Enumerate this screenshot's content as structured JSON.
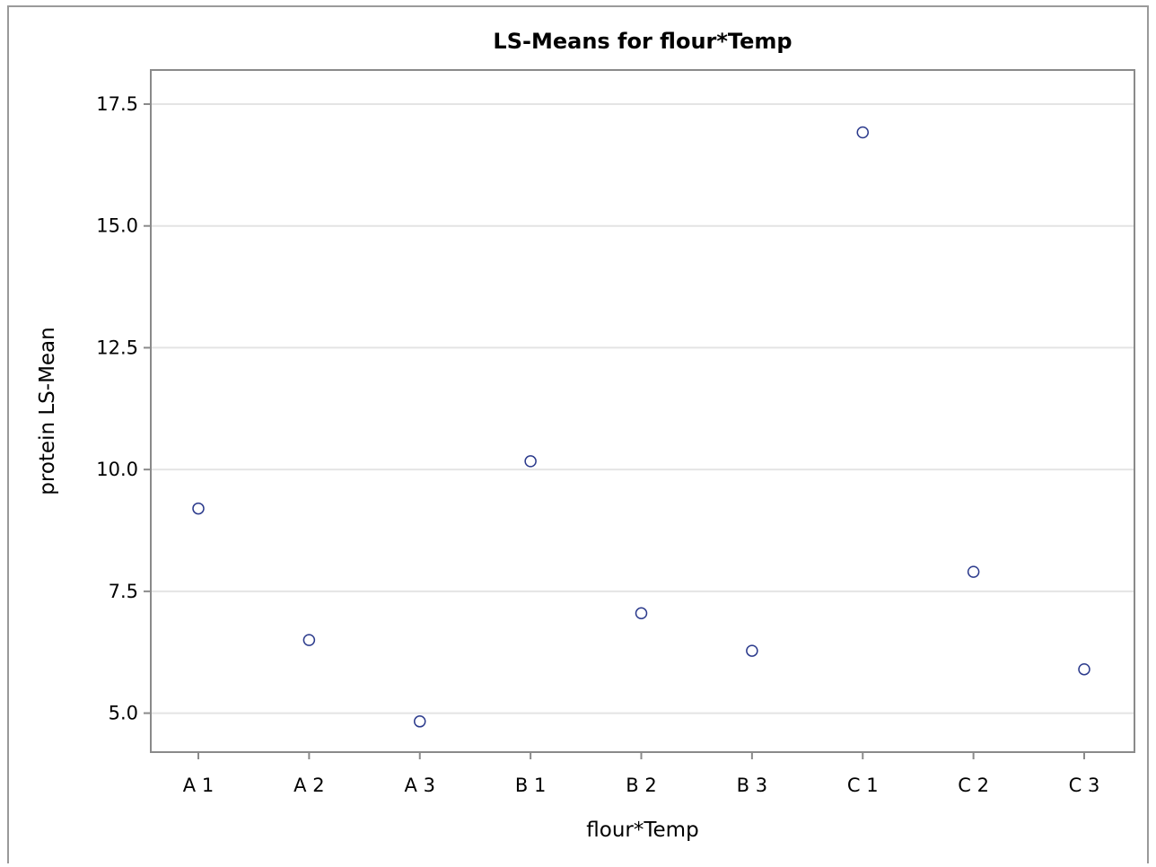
{
  "chart_data": {
    "type": "scatter",
    "title": "LS-Means for flour*Temp",
    "xlabel": "flour*Temp",
    "ylabel": "protein LS-Mean",
    "categories": [
      "A 1",
      "A 2",
      "A 3",
      "B 1",
      "B 2",
      "B 3",
      "C 1",
      "C 2",
      "C 3"
    ],
    "values": [
      9.2,
      6.5,
      4.83,
      10.17,
      7.05,
      6.28,
      16.92,
      7.9,
      5.9
    ],
    "ylim": [
      4.2,
      18.2
    ],
    "yticks": [
      "5.0",
      "7.5",
      "10.0",
      "12.5",
      "15.0",
      "17.5"
    ],
    "grid": "horizontal",
    "legend": "none",
    "marker": "open-circle",
    "colors": {
      "marker": "#2b3a8c",
      "grid": "#e4e4e4",
      "axis": "#8a8a8a"
    }
  }
}
